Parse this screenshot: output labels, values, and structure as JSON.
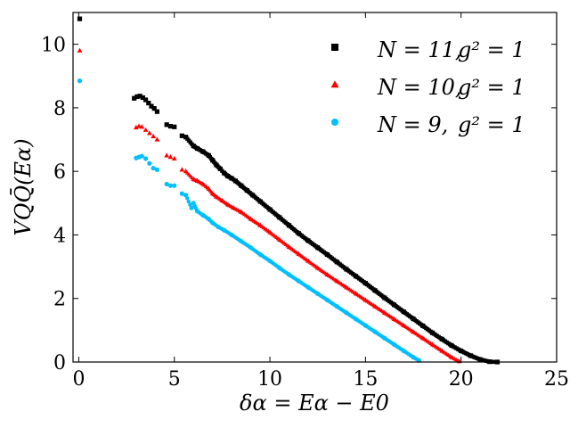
{
  "chart_data": {
    "type": "scatter",
    "title": "",
    "xlabel": "δα = Eα − E0",
    "ylabel": "VQQ̄(Eα)",
    "xlim": [
      -0.3,
      25
    ],
    "ylim": [
      0,
      11
    ],
    "xticks": [
      0,
      5,
      10,
      15,
      20,
      25
    ],
    "yticks": [
      0,
      2,
      4,
      6,
      8,
      10
    ],
    "xtick_labels": [
      "0",
      "5",
      "10",
      "15",
      "20",
      "25"
    ],
    "ytick_labels": [
      "0",
      "2",
      "4",
      "6",
      "8",
      "10"
    ],
    "legend_position": "top-right",
    "grid": false,
    "series": [
      {
        "name": "N = 11, g² = 1",
        "label_main": "N = 11,",
        "label_g": "g² = 1",
        "marker": "square",
        "color": "#000000",
        "points": [
          [
            0.05,
            10.8
          ],
          [
            2.9,
            8.3
          ],
          [
            3.05,
            8.35
          ],
          [
            3.2,
            8.37
          ],
          [
            3.35,
            8.32
          ],
          [
            3.5,
            8.25
          ],
          [
            3.65,
            8.15
          ],
          [
            3.8,
            8.05
          ],
          [
            3.95,
            7.98
          ],
          [
            4.1,
            7.88
          ],
          [
            4.6,
            7.47
          ],
          [
            4.8,
            7.42
          ],
          [
            5.0,
            7.4
          ],
          [
            5.4,
            7.12
          ],
          [
            5.6,
            7.08
          ],
          [
            6.0,
            6.8
          ],
          [
            6.2,
            6.72
          ],
          [
            6.5,
            6.62
          ],
          [
            6.8,
            6.5
          ],
          [
            7.0,
            6.35
          ],
          [
            7.2,
            6.2
          ],
          [
            7.4,
            6.08
          ],
          [
            7.6,
            5.95
          ],
          [
            7.8,
            5.85
          ],
          [
            8.0,
            5.78
          ],
          [
            8.2,
            5.7
          ],
          [
            8.5,
            5.55
          ],
          [
            8.8,
            5.4
          ],
          [
            9.1,
            5.25
          ],
          [
            9.5,
            5.05
          ],
          [
            10.0,
            4.8
          ],
          [
            10.5,
            4.55
          ],
          [
            11.0,
            4.3
          ],
          [
            11.5,
            4.05
          ],
          [
            12.0,
            3.82
          ],
          [
            12.5,
            3.6
          ],
          [
            13.0,
            3.38
          ],
          [
            13.5,
            3.15
          ],
          [
            14.0,
            2.92
          ],
          [
            14.5,
            2.7
          ],
          [
            15.0,
            2.48
          ],
          [
            15.5,
            2.25
          ],
          [
            16.0,
            2.02
          ],
          [
            16.5,
            1.8
          ],
          [
            17.0,
            1.58
          ],
          [
            17.5,
            1.36
          ],
          [
            18.0,
            1.14
          ],
          [
            18.5,
            0.92
          ],
          [
            19.0,
            0.72
          ],
          [
            19.5,
            0.52
          ],
          [
            20.0,
            0.35
          ],
          [
            20.5,
            0.2
          ],
          [
            21.0,
            0.08
          ],
          [
            21.5,
            0.01
          ],
          [
            21.9,
            0.0
          ]
        ]
      },
      {
        "name": "N = 10, g² = 1",
        "label_main": "N = 10,",
        "label_g": "g² = 1",
        "marker": "triangle",
        "color": "#ff0000",
        "points": [
          [
            0.05,
            9.8
          ],
          [
            3.0,
            7.38
          ],
          [
            3.15,
            7.42
          ],
          [
            3.3,
            7.4
          ],
          [
            3.5,
            7.3
          ],
          [
            3.7,
            7.2
          ],
          [
            3.9,
            7.1
          ],
          [
            4.1,
            7.0
          ],
          [
            4.6,
            6.5
          ],
          [
            4.8,
            6.45
          ],
          [
            5.0,
            6.4
          ],
          [
            5.4,
            6.05
          ],
          [
            5.6,
            6.0
          ],
          [
            6.0,
            5.75
          ],
          [
            6.2,
            5.7
          ],
          [
            6.5,
            5.6
          ],
          [
            6.8,
            5.45
          ],
          [
            7.0,
            5.3
          ],
          [
            7.2,
            5.2
          ],
          [
            7.5,
            5.08
          ],
          [
            7.8,
            4.95
          ],
          [
            8.1,
            4.85
          ],
          [
            8.5,
            4.72
          ],
          [
            9.0,
            4.5
          ],
          [
            9.5,
            4.3
          ],
          [
            10.0,
            4.08
          ],
          [
            10.5,
            3.85
          ],
          [
            11.0,
            3.62
          ],
          [
            11.5,
            3.4
          ],
          [
            12.0,
            3.18
          ],
          [
            12.5,
            2.96
          ],
          [
            13.0,
            2.75
          ],
          [
            13.5,
            2.55
          ],
          [
            14.0,
            2.35
          ],
          [
            14.5,
            2.15
          ],
          [
            15.0,
            1.95
          ],
          [
            15.5,
            1.75
          ],
          [
            16.0,
            1.55
          ],
          [
            16.5,
            1.35
          ],
          [
            17.0,
            1.15
          ],
          [
            17.5,
            0.95
          ],
          [
            18.0,
            0.75
          ],
          [
            18.5,
            0.55
          ],
          [
            19.0,
            0.35
          ],
          [
            19.5,
            0.15
          ],
          [
            19.9,
            0.02
          ]
        ]
      },
      {
        "name": "N = 9, g² = 1",
        "label_main": "N = 9,",
        "label_g": "g² = 1",
        "marker": "circle",
        "color": "#00bfff",
        "points": [
          [
            0.05,
            8.85
          ],
          [
            3.0,
            6.42
          ],
          [
            3.15,
            6.45
          ],
          [
            3.3,
            6.48
          ],
          [
            3.5,
            6.4
          ],
          [
            3.7,
            6.25
          ],
          [
            3.9,
            6.1
          ],
          [
            4.1,
            6.05
          ],
          [
            4.6,
            5.6
          ],
          [
            4.8,
            5.55
          ],
          [
            5.0,
            5.55
          ],
          [
            5.4,
            5.3
          ],
          [
            5.6,
            5.25
          ],
          [
            5.9,
            4.85
          ],
          [
            6.0,
            5.0
          ],
          [
            6.2,
            4.75
          ],
          [
            6.5,
            4.62
          ],
          [
            6.8,
            4.5
          ],
          [
            7.0,
            4.38
          ],
          [
            7.3,
            4.25
          ],
          [
            7.6,
            4.15
          ],
          [
            8.0,
            4.0
          ],
          [
            8.5,
            3.8
          ],
          [
            9.0,
            3.6
          ],
          [
            9.5,
            3.38
          ],
          [
            10.0,
            3.18
          ],
          [
            10.5,
            2.96
          ],
          [
            11.0,
            2.75
          ],
          [
            11.5,
            2.55
          ],
          [
            12.0,
            2.35
          ],
          [
            12.5,
            2.15
          ],
          [
            13.0,
            1.95
          ],
          [
            13.5,
            1.75
          ],
          [
            14.0,
            1.55
          ],
          [
            14.5,
            1.35
          ],
          [
            15.0,
            1.15
          ],
          [
            15.5,
            0.95
          ],
          [
            16.0,
            0.75
          ],
          [
            16.5,
            0.55
          ],
          [
            17.0,
            0.35
          ],
          [
            17.5,
            0.15
          ],
          [
            17.8,
            0.05
          ]
        ]
      }
    ]
  }
}
